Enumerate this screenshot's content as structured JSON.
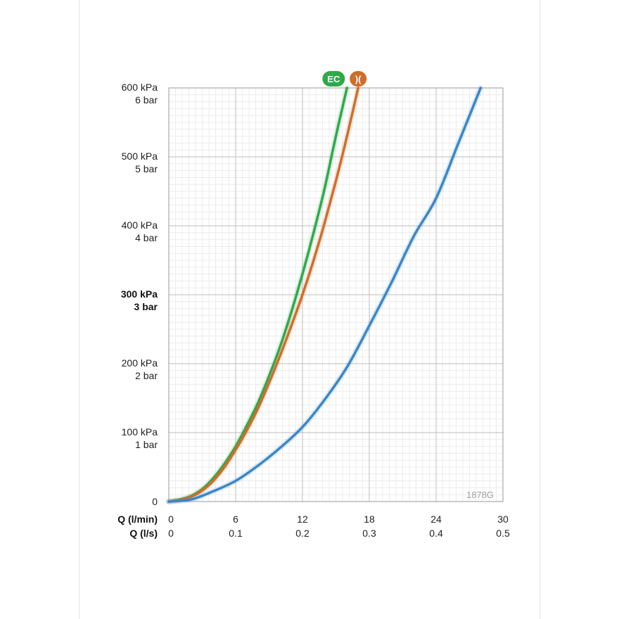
{
  "chart_data": {
    "type": "line",
    "code_label": "1878G",
    "y_ticks": [
      {
        "value": 600,
        "kpa": "600 kPa",
        "bar": "6 bar",
        "bold": false
      },
      {
        "value": 500,
        "kpa": "500 kPa",
        "bar": "5 bar",
        "bold": false
      },
      {
        "value": 400,
        "kpa": "400 kPa",
        "bar": "4 bar",
        "bold": false
      },
      {
        "value": 300,
        "kpa": "300 kPa",
        "bar": "3 bar",
        "bold": true
      },
      {
        "value": 200,
        "kpa": "200 kPa",
        "bar": "2 bar",
        "bold": false
      },
      {
        "value": 100,
        "kpa": "100 kPa",
        "bar": "1 bar",
        "bold": false
      },
      {
        "value": 0,
        "kpa": "0",
        "bar": "",
        "bold": false
      }
    ],
    "x_axis_primary": {
      "label": "Q (l/min)",
      "ticks": [
        "0",
        "6",
        "12",
        "18",
        "24",
        "30"
      ],
      "values": [
        0,
        6,
        12,
        18,
        24,
        30
      ]
    },
    "x_axis_secondary": {
      "label": "Q (l/s)",
      "ticks": [
        "0",
        "0.1",
        "0.2",
        "0.3",
        "0.4",
        "0.5"
      ]
    },
    "xlim": [
      0,
      30
    ],
    "ylim": [
      0,
      600
    ],
    "grid": true,
    "series": [
      {
        "marker_text": "EC",
        "color": "#2eaa4a",
        "x": [
          0,
          1,
          2,
          3,
          4,
          5,
          6,
          7,
          8,
          9,
          10,
          11,
          12,
          13,
          14,
          15,
          16
        ],
        "y": [
          0,
          3,
          8,
          18,
          34,
          55,
          80,
          110,
          143,
          182,
          225,
          275,
          330,
          390,
          455,
          530,
          600
        ]
      },
      {
        "marker_text": ")(",
        "color": "#d06d2b",
        "x": [
          0,
          1,
          2,
          3,
          4,
          5,
          6,
          7,
          8,
          9,
          10,
          11,
          12,
          13,
          14,
          15,
          16,
          17
        ],
        "y": [
          0,
          2,
          7,
          16,
          30,
          50,
          75,
          103,
          135,
          172,
          212,
          255,
          300,
          350,
          405,
          465,
          530,
          600
        ]
      },
      {
        "marker_text": "",
        "color": "#3a87c7",
        "x": [
          0,
          2,
          4,
          6,
          8,
          10,
          12,
          14,
          16,
          18,
          20,
          22,
          24,
          26,
          28
        ],
        "y": [
          0,
          3,
          15,
          30,
          52,
          78,
          108,
          148,
          195,
          255,
          318,
          385,
          440,
          520,
          600
        ]
      }
    ]
  }
}
